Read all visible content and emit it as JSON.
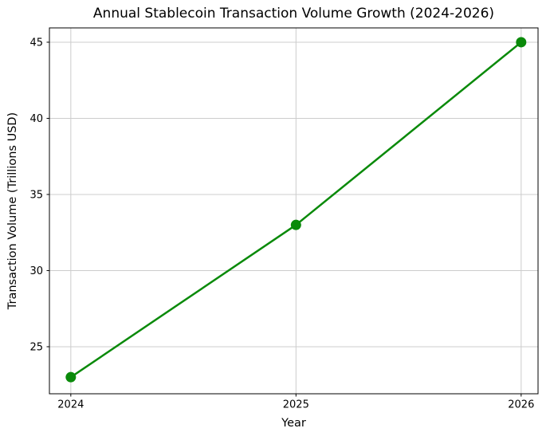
{
  "chart_data": {
    "type": "line",
    "title": "Annual Stablecoin Transaction Volume Growth (2024-2026)",
    "xlabel": "Year",
    "ylabel": "Transaction Volume (Trillions USD)",
    "x": [
      2024,
      2025,
      2026
    ],
    "values": [
      23,
      33,
      45
    ],
    "xtick_labels": [
      "2024",
      "2025",
      "2026"
    ],
    "yticks": [
      25,
      30,
      35,
      40,
      45
    ],
    "xlim": [
      2023.905,
      2026.075
    ],
    "ylim": [
      21.91,
      45.94
    ],
    "grid": true,
    "legend": false,
    "line_color": "#0a8a0a",
    "marker": "circle",
    "grid_color": "#cccccc",
    "spine_color": "#000000",
    "background_color": "#ffffff"
  }
}
